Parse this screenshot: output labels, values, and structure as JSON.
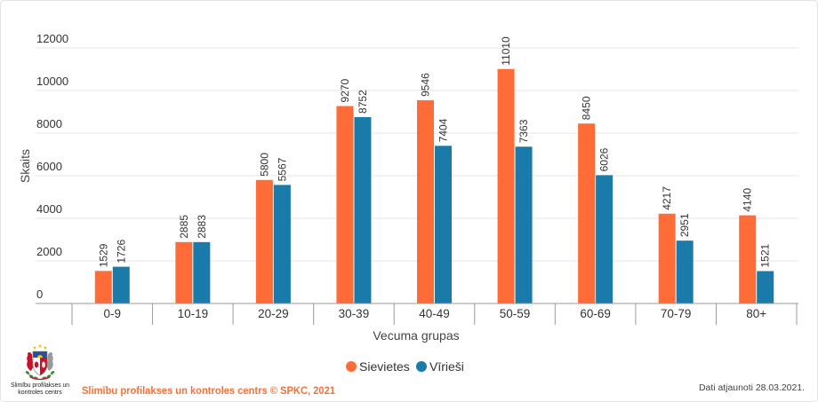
{
  "chart_data": {
    "type": "bar",
    "categories": [
      "0-9",
      "10-19",
      "20-29",
      "30-39",
      "40-49",
      "50-59",
      "60-69",
      "70-79",
      "80+"
    ],
    "series": [
      {
        "name": "Sievietes",
        "color": "#FF6C37",
        "values": [
          1529,
          2885,
          5800,
          9270,
          9546,
          11010,
          8450,
          4217,
          4140
        ]
      },
      {
        "name": "Vīrieši",
        "color": "#1A7AAA",
        "values": [
          1726,
          2883,
          5567,
          8752,
          7404,
          7363,
          6026,
          2951,
          1521
        ]
      }
    ],
    "xlabel": "Vecuma grupas",
    "ylabel": "Skaits",
    "ylim": [
      0,
      12000
    ],
    "yticks": [
      0,
      2000,
      4000,
      6000,
      8000,
      10000,
      12000
    ],
    "grid": true,
    "data_labels": true,
    "legend": "bottom-center"
  },
  "footer": {
    "logo_text_line1": "Slimību profilakses un",
    "logo_text_line2": "kontroles centrs",
    "credit": "Slimību profilakses un kontroles centrs © SPKC, 2021",
    "credit_color": "#F1733C",
    "updated": "Dati atjaunoti 28.03.2021."
  }
}
